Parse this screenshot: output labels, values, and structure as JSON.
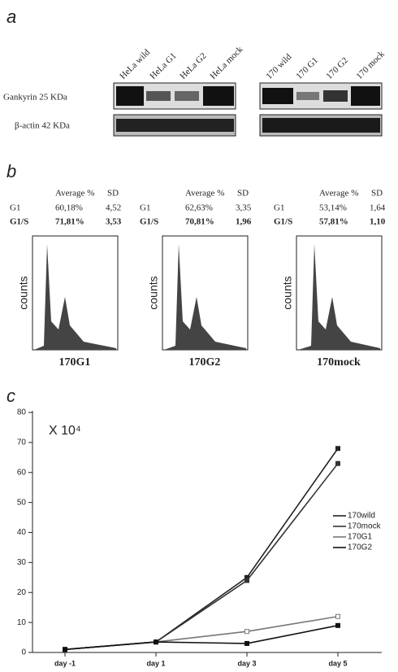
{
  "panel_a": {
    "label": "a",
    "lanes_left": [
      "HeLa wild",
      "HeLa G1",
      "HeLa G2",
      "HeLa mock"
    ],
    "lanes_right": [
      "170 wild",
      "170 G1",
      "170 G2",
      "170 mock"
    ],
    "rows": [
      "Gankyrin 25 KDa",
      "β-actin 42 KDa"
    ]
  },
  "panel_b": {
    "label": "b",
    "samples": [
      {
        "header": [
          "Average %",
          "SD"
        ],
        "rows": [
          [
            "G1",
            "60,18%",
            "4,52"
          ],
          [
            "G1/S",
            "71,81%",
            "3,53"
          ]
        ],
        "y_label": "counts",
        "name": "170G1"
      },
      {
        "header": [
          "Average %",
          "SD"
        ],
        "rows": [
          [
            "G1",
            "62,63%",
            "3,35"
          ],
          [
            "G1/S",
            "70,81%",
            "1,96"
          ]
        ],
        "y_label": "counts",
        "name": "170G2"
      },
      {
        "header": [
          "Average %",
          "SD"
        ],
        "rows": [
          [
            "G1",
            "53,14%",
            "1,64"
          ],
          [
            "G1/S",
            "57,81%",
            "1,10"
          ]
        ],
        "y_label": "counts",
        "name": "170mock"
      }
    ]
  },
  "chart_data": {
    "type": "line",
    "label": "c",
    "annotation": "X 10⁴",
    "categories": [
      "day -1",
      "day 1",
      "day 3",
      "day 5"
    ],
    "series": [
      {
        "name": "170wild",
        "color": "#222222",
        "values": [
          1,
          3.5,
          25,
          68
        ]
      },
      {
        "name": "170mock",
        "color": "#333333",
        "values": [
          1,
          3.5,
          24,
          63
        ]
      },
      {
        "name": "170G1",
        "color": "#777777",
        "values": [
          1,
          3.5,
          7,
          12
        ]
      },
      {
        "name": "170G2",
        "color": "#111111",
        "values": [
          1,
          3.5,
          3,
          9
        ]
      }
    ],
    "ylim": [
      0,
      80
    ],
    "yticks": [
      0,
      10,
      20,
      30,
      40,
      50,
      60,
      70,
      80
    ]
  }
}
